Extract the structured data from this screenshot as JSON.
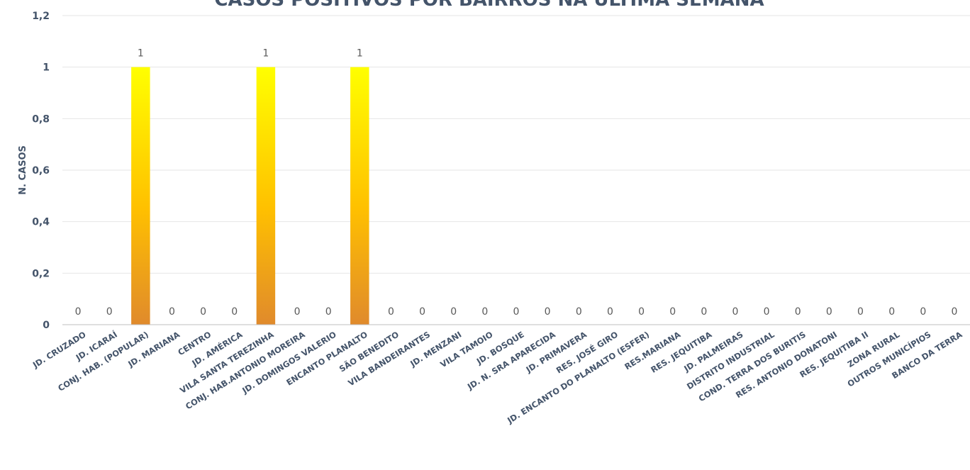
{
  "chart_data": {
    "type": "bar",
    "title": "CASOS POSITIVOS POR BAIRROS NA ÚLTIMA SEMANA",
    "xlabel": "",
    "ylabel": "N. CASOS",
    "ylim": [
      0,
      1.2
    ],
    "yticks": [
      "0",
      "0,2",
      "0,4",
      "0,6",
      "0,8",
      "1",
      "1,2"
    ],
    "grid": true,
    "legend": "none",
    "categories": [
      "JD. CRUZADO",
      "JD. ICARAÍ",
      "CONJ. HAB. (POPULAR)",
      "JD. MARIANA",
      "CENTRO",
      "JD. AMÉRICA",
      "VILA SANTA TEREZINHA",
      "CONJ. HAB.ANTONIO MOREIRA",
      "JD. DOMINGOS VALERIO",
      "ENCANTO PLANALTO",
      "SÃO BENEDITO",
      "VILA BANDEIRANTES",
      "JD. MENZANI",
      "VILA TAMOIO",
      "JD. BOSQUE",
      "JD. N. SRA APARECIDA",
      "JD. PRIMAVERA",
      "RES. JOSÉ GIRO",
      "JD. ENCANTO DO PLANALTO (ESFER)",
      "RES.MARIANA",
      "RES. JEQUITIBA",
      "JD. PALMEIRAS",
      "DISTRITO INDUSTRIAL",
      "COND. TERRA DOS BURITIS",
      "RES. ANTONIO DONATONI",
      "RES. JEQUITIBA II",
      "ZONA RURAL",
      "OUTROS MUNICÍPIOS",
      "BANCO DA TERRA"
    ],
    "values": [
      0,
      0,
      1,
      0,
      0,
      0,
      1,
      0,
      0,
      1,
      0,
      0,
      0,
      0,
      0,
      0,
      0,
      0,
      0,
      0,
      0,
      0,
      0,
      0,
      0,
      0,
      0,
      0,
      0
    ],
    "data_labels": [
      "0",
      "0",
      "1",
      "0",
      "0",
      "0",
      "1",
      "0",
      "0",
      "1",
      "0",
      "0",
      "0",
      "0",
      "0",
      "0",
      "0",
      "0",
      "0",
      "0",
      "0",
      "0",
      "0",
      "0",
      "0",
      "0",
      "0",
      "0",
      "0"
    ],
    "colors": {
      "bar_top": "#ffff00",
      "bar_mid": "#ffc000",
      "bar_bottom": "#e08a2c",
      "text": "#44546a"
    }
  }
}
